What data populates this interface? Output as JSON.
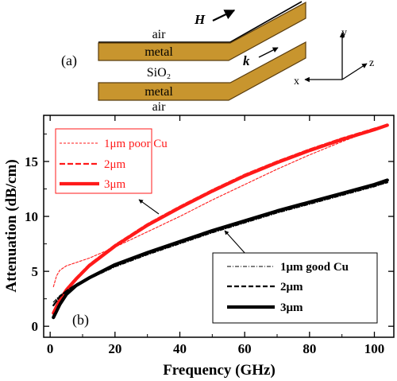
{
  "panel_a": {
    "label": "(a)",
    "layers": [
      "air",
      "metal",
      "SiO₂",
      "metal",
      "air"
    ],
    "h_field_label": "H",
    "k_label": "k",
    "axes": {
      "y": "y",
      "z": "z",
      "x": "x"
    },
    "colors": {
      "metal": "#C8952E",
      "metal_edge": "#5a3d0e"
    }
  },
  "panel_b_label": "(b)",
  "chart_data": {
    "type": "line",
    "xlabel": "Frequency (GHz)",
    "ylabel": "Attenuation (dB/cm)",
    "xlim": [
      -2,
      106
    ],
    "ylim": [
      -1,
      19.2
    ],
    "xticks": [
      0,
      20,
      40,
      60,
      80,
      100
    ],
    "yticks": [
      0,
      5,
      10,
      15
    ],
    "grid": false,
    "legends": [
      {
        "placement": "top-left",
        "color": "#ff1a1a",
        "entries": [
          "1μm poor Cu",
          "2μm",
          "3μm"
        ]
      },
      {
        "placement": "bottom-right",
        "color": "#000000",
        "entries": [
          "1μm good Cu",
          "2μm",
          "3μm"
        ]
      }
    ],
    "series": [
      {
        "name": "1μm poor Cu",
        "color": "#ff1a1a",
        "style": "dashed-thin",
        "x": [
          1,
          2,
          3,
          5,
          8,
          12,
          20,
          30,
          40,
          50,
          60,
          70,
          80,
          90,
          100,
          104
        ],
        "y": [
          3.6,
          4.6,
          5.1,
          5.5,
          5.8,
          6.2,
          7.2,
          8.6,
          10.0,
          11.5,
          12.9,
          14.3,
          15.6,
          16.8,
          17.9,
          18.4
        ]
      },
      {
        "name": "2μm",
        "color": "#ff1a1a",
        "style": "dashed-thick",
        "x": [
          1,
          2,
          3,
          5,
          8,
          12,
          20,
          30,
          40,
          50,
          60,
          70,
          80,
          90,
          100,
          104
        ],
        "y": [
          1.3,
          1.9,
          2.5,
          3.4,
          4.4,
          5.6,
          7.4,
          9.3,
          10.9,
          12.4,
          13.8,
          15.0,
          16.1,
          17.1,
          18.0,
          18.3
        ]
      },
      {
        "name": "3μm",
        "color": "#ff1a1a",
        "style": "solid-thick",
        "x": [
          1,
          2,
          3,
          5,
          8,
          12,
          20,
          30,
          40,
          50,
          60,
          70,
          80,
          90,
          100,
          104
        ],
        "y": [
          1.2,
          1.8,
          2.4,
          3.3,
          4.3,
          5.5,
          7.3,
          9.2,
          10.8,
          12.3,
          13.7,
          14.9,
          16.0,
          17.0,
          17.9,
          18.3
        ]
      },
      {
        "name": "1μm good Cu",
        "color": "#000000",
        "style": "dashdot-thin",
        "x": [
          1,
          2,
          3,
          5,
          8,
          12,
          20,
          30,
          40,
          50,
          60,
          70,
          80,
          90,
          100,
          104
        ],
        "y": [
          2.2,
          2.5,
          2.8,
          3.2,
          3.7,
          4.3,
          5.4,
          6.5,
          7.5,
          8.5,
          9.4,
          10.3,
          11.1,
          11.9,
          12.7,
          13.1
        ]
      },
      {
        "name": "2μm",
        "color": "#000000",
        "style": "dashed-thick",
        "x": [
          1,
          2,
          3,
          5,
          8,
          12,
          20,
          30,
          40,
          50,
          60,
          70,
          80,
          90,
          100,
          104
        ],
        "y": [
          1.9,
          2.3,
          2.7,
          3.2,
          3.8,
          4.4,
          5.5,
          6.6,
          7.6,
          8.6,
          9.5,
          10.4,
          11.2,
          12.0,
          12.8,
          13.1
        ]
      },
      {
        "name": "3μm",
        "color": "#000000",
        "style": "solid-thick",
        "x": [
          1,
          2,
          3,
          5,
          8,
          12,
          20,
          30,
          40,
          50,
          60,
          70,
          80,
          90,
          100,
          104
        ],
        "y": [
          0.8,
          1.4,
          2.0,
          2.9,
          3.7,
          4.4,
          5.6,
          6.7,
          7.7,
          8.7,
          9.6,
          10.5,
          11.3,
          12.1,
          12.9,
          13.3
        ]
      }
    ]
  }
}
